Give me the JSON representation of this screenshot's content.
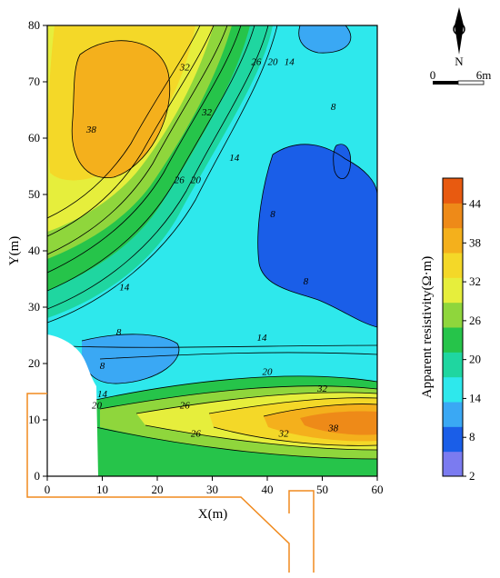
{
  "chart_data": {
    "type": "heatmap",
    "title": "",
    "xlabel": "X(m)",
    "ylabel": "Y(m)",
    "xlim": [
      0,
      60
    ],
    "ylim": [
      0,
      80
    ],
    "x_ticks": [
      0,
      10,
      20,
      30,
      40,
      50,
      60
    ],
    "y_ticks": [
      0,
      10,
      20,
      30,
      40,
      50,
      60,
      70,
      80
    ],
    "colorbar": {
      "label": "Apparent resistivity(Ω·m)",
      "ticks": [
        2,
        8,
        14,
        20,
        26,
        32,
        38,
        44
      ],
      "range": [
        2,
        48
      ]
    },
    "contour_labels": [
      {
        "text": "32",
        "x": 25,
        "y": 72
      },
      {
        "text": "38",
        "x": 8,
        "y": 61
      },
      {
        "text": "32",
        "x": 29,
        "y": 64
      },
      {
        "text": "26",
        "x": 38,
        "y": 73
      },
      {
        "text": "20",
        "x": 41,
        "y": 73
      },
      {
        "text": "14",
        "x": 44,
        "y": 73
      },
      {
        "text": "8",
        "x": 52,
        "y": 65
      },
      {
        "text": "26",
        "x": 24,
        "y": 52
      },
      {
        "text": "20",
        "x": 27,
        "y": 52
      },
      {
        "text": "14",
        "x": 34,
        "y": 56
      },
      {
        "text": "8",
        "x": 41,
        "y": 46
      },
      {
        "text": "8",
        "x": 47,
        "y": 34
      },
      {
        "text": "14",
        "x": 14,
        "y": 33
      },
      {
        "text": "8",
        "x": 13,
        "y": 25
      },
      {
        "text": "8",
        "x": 10,
        "y": 19
      },
      {
        "text": "14",
        "x": 39,
        "y": 24
      },
      {
        "text": "20",
        "x": 40,
        "y": 18
      },
      {
        "text": "14",
        "x": 10,
        "y": 14
      },
      {
        "text": "20",
        "x": 9,
        "y": 12
      },
      {
        "text": "26",
        "x": 25,
        "y": 12
      },
      {
        "text": "32",
        "x": 50,
        "y": 15
      },
      {
        "text": "26",
        "x": 27,
        "y": 7
      },
      {
        "text": "32",
        "x": 43,
        "y": 7
      },
      {
        "text": "38",
        "x": 52,
        "y": 8
      }
    ],
    "data_excluded_region": "white area at x 0–10, y 0–25",
    "compass": {
      "label": "N"
    },
    "scale_bar": {
      "start_label": "0",
      "end_label": "6m"
    },
    "colors": {
      "stops": [
        "#7b7bf0",
        "#1a5ee8",
        "#3aa8f4",
        "#2ee8ec",
        "#1fd6a0",
        "#26c44a",
        "#8fd63c",
        "#e6ee3c",
        "#f4d828",
        "#f4b01c",
        "#ee8a18",
        "#e85a10"
      ],
      "outline": "#f08a1e"
    }
  }
}
